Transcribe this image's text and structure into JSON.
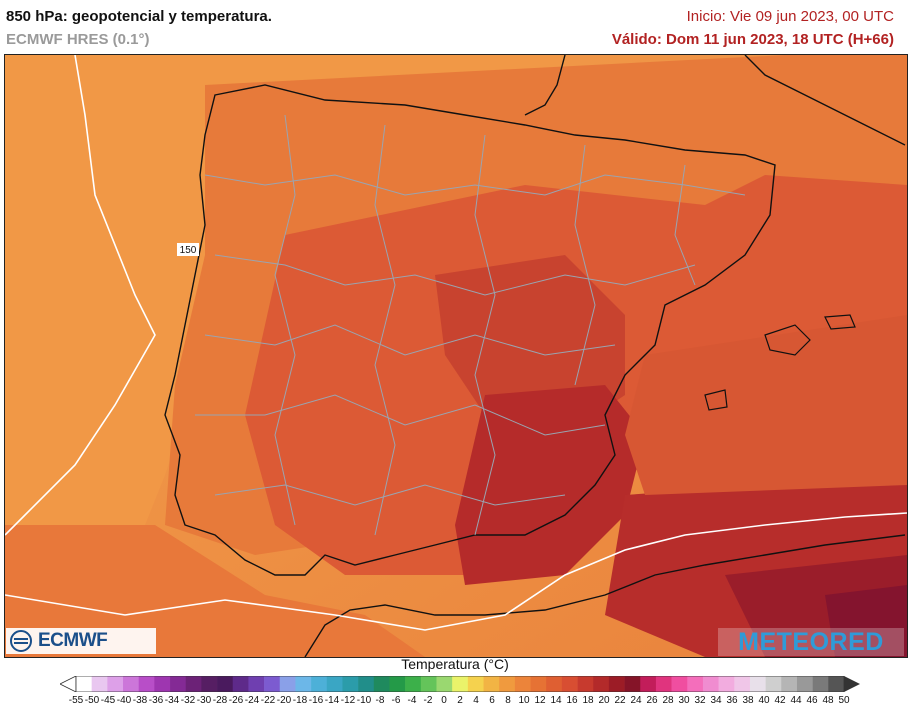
{
  "header": {
    "title": "850 hPa: geopotencial y temperatura.",
    "model": "ECMWF HRES (0.1°)",
    "init": "Inicio: Vie 09 jun 2023, 00 UTC",
    "valid": "Válido: Dom 11 jun 2023, 18 UTC (H+66)"
  },
  "map": {
    "contour_label": "150",
    "colors": {
      "sea_light": "#f5a04a",
      "land_orange": "#ee8a3e",
      "mid_orange": "#e36a36",
      "red": "#d44a34",
      "deep_red": "#b32a2a",
      "darkest": "#8e1a28",
      "border_gray": "#9aa4b0",
      "coast": "#111111"
    }
  },
  "logos": {
    "ecmwf": "ECMWF",
    "meteored": "METEORED"
  },
  "legend": {
    "title": "Temperatura (°C)",
    "labels": [
      "-55",
      "-50",
      "-45",
      "-40",
      "-38",
      "-36",
      "-34",
      "-32",
      "-30",
      "-28",
      "-26",
      "-24",
      "-22",
      "-20",
      "-18",
      "-16",
      "-14",
      "-12",
      "-10",
      "-8",
      "-6",
      "-4",
      "-2",
      "0",
      "2",
      "4",
      "6",
      "8",
      "10",
      "12",
      "14",
      "16",
      "18",
      "20",
      "22",
      "24",
      "26",
      "28",
      "30",
      "32",
      "34",
      "36",
      "38",
      "40",
      "42",
      "44",
      "46",
      "48",
      "50"
    ],
    "colors": [
      "#ffffff",
      "#e9c7f0",
      "#dda0e8",
      "#cc76d9",
      "#b84ec8",
      "#9e36b0",
      "#842a95",
      "#6c2277",
      "#561e63",
      "#4a1a5e",
      "#5e2a8a",
      "#6f3fb0",
      "#7c5bd0",
      "#8aa0e8",
      "#6cb7e8",
      "#4db0d8",
      "#3aa6c4",
      "#2b9caa",
      "#218e8a",
      "#1f8a5e",
      "#249a48",
      "#3cb04a",
      "#64c45a",
      "#9ad870",
      "#eaf36a",
      "#f5d24e",
      "#f2b444",
      "#f09a3e",
      "#ec843a",
      "#e67234",
      "#df5f32",
      "#d84e32",
      "#c73a2e",
      "#b32a2a",
      "#9c1c26",
      "#851428",
      "#c21d5a",
      "#e0347e",
      "#f04ea0",
      "#f46ebb",
      "#f08cd0",
      "#f2acdf",
      "#f0c6e8",
      "#e8e0ea",
      "#cfcfcf",
      "#b5b5b5",
      "#999999",
      "#7a7a7a",
      "#555555"
    ]
  }
}
